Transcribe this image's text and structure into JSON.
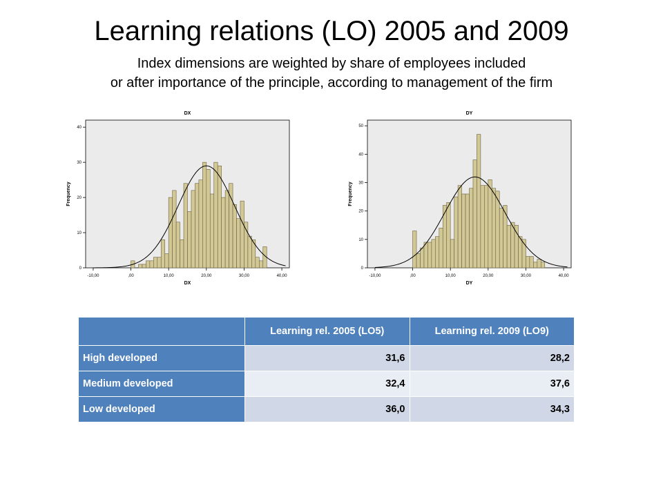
{
  "slide": {
    "title": "Learning relations (LO) 2005 and 2009",
    "subtitle_line1": "Index dimensions are weighted by share of employees included",
    "subtitle_line2": "or after importance of the principle, according to management of the firm"
  },
  "colors": {
    "bar_fill": "#d2c896",
    "bar_stroke": "#6b6040",
    "plot_bg": "#ebebeb",
    "curve": "#000000",
    "table_header": "#4f81bd",
    "table_row_odd": "#d0d8e8",
    "table_row_even": "#e9edf4"
  },
  "chart_data": [
    {
      "type": "bar",
      "subtype": "histogram with normal curve",
      "title": "DX",
      "xlabel": "DX",
      "ylabel": "Frequency",
      "xlim": [
        -12,
        42
      ],
      "ylim": [
        0,
        42
      ],
      "x_ticks": [
        "-10,00",
        ",00",
        "10,00",
        "20,00",
        "30,00",
        "40,00"
      ],
      "x_tick_values": [
        -10,
        0,
        10,
        20,
        30,
        40
      ],
      "y_ticks": [
        "0",
        "10",
        "20",
        "30",
        "40"
      ],
      "y_tick_values": [
        0,
        10,
        20,
        30,
        40
      ],
      "bin_start": 0,
      "bin_width": 1,
      "values": [
        2,
        0,
        1,
        1,
        2,
        2,
        3,
        3,
        8,
        4,
        20,
        22,
        13,
        8,
        24,
        16,
        22,
        24,
        25,
        30,
        28,
        21,
        30,
        29,
        20,
        22,
        24,
        18,
        14,
        19,
        13,
        9,
        8,
        3,
        2,
        6
      ],
      "normal_curve": {
        "mean": 20,
        "sd": 7.5,
        "peak": 29
      }
    },
    {
      "type": "bar",
      "subtype": "histogram with normal curve",
      "title": "DY",
      "xlabel": "DY",
      "ylabel": "Frequency",
      "xlim": [
        -12,
        42
      ],
      "ylim": [
        0,
        52
      ],
      "x_ticks": [
        "-10,00",
        ",00",
        "10,00",
        "20,00",
        "30,00",
        "40,00"
      ],
      "x_tick_values": [
        -10,
        0,
        10,
        20,
        30,
        40
      ],
      "y_ticks": [
        "0",
        "10",
        "20",
        "30",
        "40",
        "50"
      ],
      "y_tick_values": [
        0,
        10,
        20,
        30,
        40,
        50
      ],
      "bin_start": 0,
      "bin_width": 1,
      "values": [
        13,
        5,
        7,
        9,
        9,
        10,
        11,
        14,
        22,
        23,
        10,
        25,
        29,
        26,
        26,
        28,
        38,
        47,
        29,
        29,
        31,
        28,
        27,
        21,
        22,
        15,
        16,
        15,
        11,
        10,
        4,
        4,
        2,
        3,
        2
      ],
      "normal_curve": {
        "mean": 16.5,
        "sd": 8,
        "peak": 32
      }
    }
  ],
  "table": {
    "columns": [
      "",
      "Learning rel. 2005 (LO5)",
      "Learning  rel. 2009 (LO9)"
    ],
    "rows": [
      {
        "label": "High developed",
        "lo5": "31,6",
        "lo9": "28,2"
      },
      {
        "label": "Medium  developed",
        "lo5": "32,4",
        "lo9": "37,6"
      },
      {
        "label": "Low developed",
        "lo5": "36,0",
        "lo9": "34,3"
      }
    ]
  }
}
